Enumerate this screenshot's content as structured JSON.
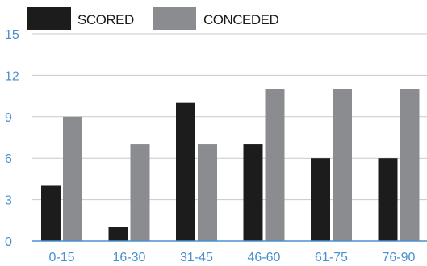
{
  "chart_data": {
    "type": "bar",
    "categories": [
      "0-15",
      "16-30",
      "31-45",
      "46-60",
      "61-75",
      "76-90"
    ],
    "series": [
      {
        "name": "SCORED",
        "values": [
          4,
          1,
          10,
          7,
          6,
          6
        ]
      },
      {
        "name": "CONCEDED",
        "values": [
          9,
          7,
          7,
          11,
          11,
          11
        ]
      }
    ],
    "y_ticks": [
      "0",
      "3",
      "6",
      "9",
      "12",
      "15"
    ],
    "ylim": [
      0,
      15
    ],
    "grid": true,
    "legend_position": "top-left"
  },
  "colors": {
    "scored": "#1c1c1c",
    "conceded": "#8a8c90",
    "axis": "#4a8fcf",
    "grid": "#c9c9c9"
  }
}
